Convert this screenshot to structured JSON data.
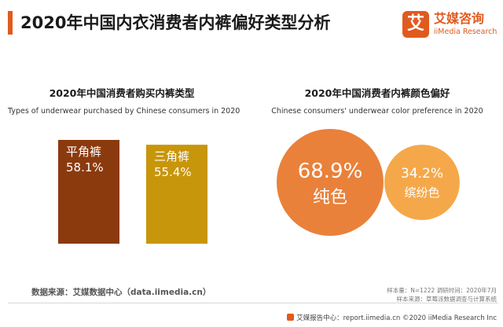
{
  "header": {
    "title": "2020年中国内衣消费者内裤偏好类型分析"
  },
  "logo": {
    "badge": "艾",
    "name": "艾媒咨询",
    "sub": "iiMedia Research"
  },
  "colors": {
    "accent": "#e05a1e",
    "bar_brief": "#8b3a0e",
    "bar_triangle": "#c8960a",
    "bubble_plain": "#e87a30",
    "bubble_colorful": "#f4a340"
  },
  "chart_data": [
    {
      "type": "bar",
      "title": "2020年中国消费者购买内裤类型",
      "subtitle": "Types of underwear purchased by Chinese consumers in 2020",
      "categories": [
        "平角裤",
        "三角裤"
      ],
      "values": [
        58.1,
        55.4
      ],
      "value_labels": [
        "58.1%",
        "55.4%"
      ],
      "ylim": [
        0,
        65
      ]
    },
    {
      "type": "scatter",
      "title": "2020年中国消费者内裤颜色偏好",
      "subtitle": "Chinese consumers' underwear color preference in 2020",
      "categories": [
        "纯色",
        "缤纷色"
      ],
      "values": [
        68.9,
        34.2
      ],
      "value_labels": [
        "68.9%",
        "34.2%"
      ]
    }
  ],
  "footer": {
    "source": "数据来源：艾媒数据中心（data.iimedia.cn）",
    "sample": "样本量：N=1222    调研时间：2020年7月",
    "sample_source": "样本来源：草莓派数据调查与计算系统",
    "bottom": "艾媒报告中心：report.iimedia.cn    ©2020  iiMedia Research  Inc"
  }
}
